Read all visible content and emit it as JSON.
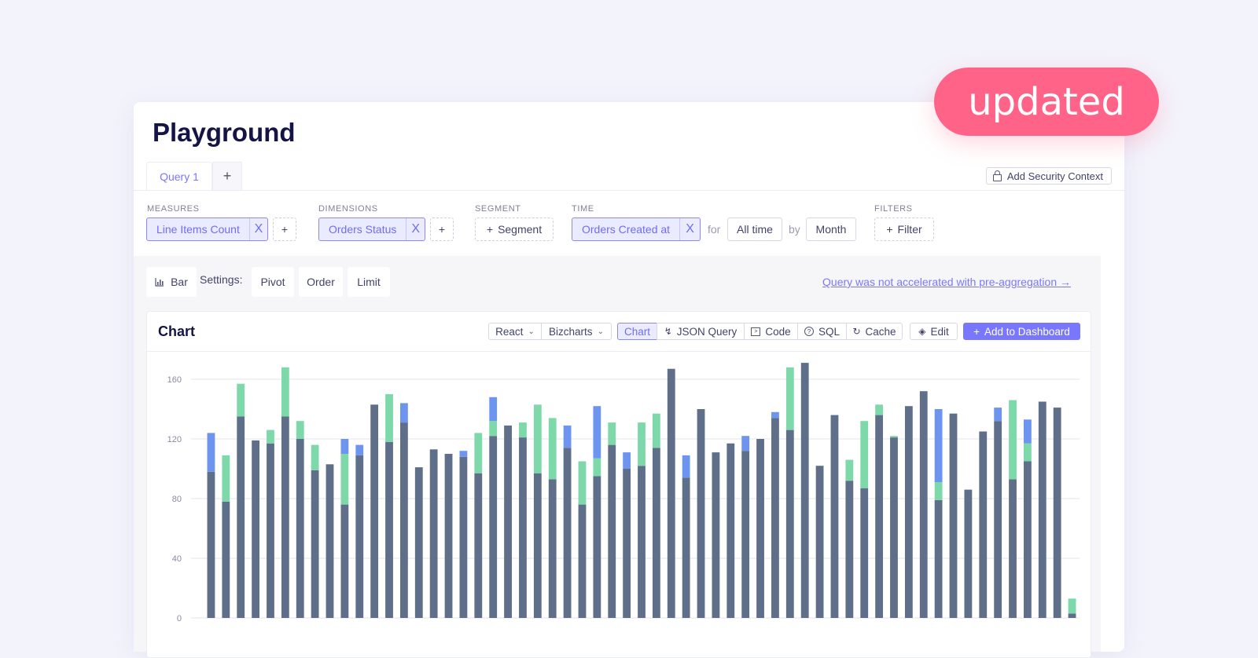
{
  "badge": "updated",
  "title": "Playground",
  "tabs": {
    "query_label": "Query 1",
    "add": "+"
  },
  "security_button": "Add Security Context",
  "builder": {
    "measures": {
      "label": "MEASURES",
      "item": "Line Items Count"
    },
    "dimensions": {
      "label": "DIMENSIONS",
      "item": "Orders Status"
    },
    "segment": {
      "label": "SEGMENT",
      "button": "Segment"
    },
    "time": {
      "label": "TIME",
      "item": "Orders Created at",
      "for_word": "for",
      "range": "All time",
      "by_word": "by",
      "granularity": "Month"
    },
    "filters": {
      "label": "FILTERS",
      "button": "Filter"
    },
    "add": "+",
    "remove": "X"
  },
  "controls": {
    "chart_type": "Bar",
    "settings_label": "Settings:",
    "pivot": "Pivot",
    "order": "Order",
    "limit": "Limit",
    "preagg_link": "Query was not accelerated with pre-aggregation →"
  },
  "chart_card": {
    "title": "Chart",
    "framework": "React",
    "library": "Bizcharts",
    "tabs": {
      "chart": "Chart",
      "json": "JSON Query",
      "code": "Code",
      "sql": "SQL",
      "cache": "Cache"
    },
    "edit": "Edit",
    "add_dashboard": "Add to Dashboard"
  },
  "colors": {
    "accent": "#7a77ff",
    "badge": "#ff6488",
    "series_dark": "#5f6f8a",
    "series_green": "#7dd9a9",
    "series_blue": "#6d94ee"
  },
  "chart_data": {
    "type": "bar",
    "stacked": true,
    "y_ticks": [
      0,
      40,
      80,
      120,
      160
    ],
    "ylim": [
      0,
      175
    ],
    "grid": true,
    "series_colors": [
      "#5f6f8a",
      "#7dd9a9",
      "#6d94ee"
    ],
    "stacks": [
      [
        98,
        0,
        26
      ],
      [
        78,
        31,
        0
      ],
      [
        135,
        22,
        0
      ],
      [
        119,
        0,
        0
      ],
      [
        117,
        9,
        0
      ],
      [
        135,
        33,
        0
      ],
      [
        120,
        12,
        0
      ],
      [
        99,
        17,
        0
      ],
      [
        103,
        0,
        0
      ],
      [
        76,
        34,
        10
      ],
      [
        109,
        0,
        7
      ],
      [
        143,
        0,
        0
      ],
      [
        118,
        32,
        0
      ],
      [
        131,
        0,
        13
      ],
      [
        101,
        0,
        0
      ],
      [
        113,
        0,
        0
      ],
      [
        110,
        0,
        0
      ],
      [
        108,
        0,
        4
      ],
      [
        97,
        27,
        0
      ],
      [
        122,
        10,
        16
      ],
      [
        129,
        0,
        0
      ],
      [
        121,
        10,
        0
      ],
      [
        97,
        46,
        0
      ],
      [
        93,
        41,
        0
      ],
      [
        114,
        0,
        15
      ],
      [
        76,
        29,
        0
      ],
      [
        95,
        12,
        35
      ],
      [
        116,
        15,
        0
      ],
      [
        100,
        0,
        11
      ],
      [
        102,
        29,
        0
      ],
      [
        114,
        23,
        0
      ],
      [
        167,
        0,
        0
      ],
      [
        94,
        0,
        15
      ],
      [
        140,
        0,
        0
      ],
      [
        111,
        0,
        0
      ],
      [
        117,
        0,
        0
      ],
      [
        112,
        0,
        10
      ],
      [
        120,
        0,
        0
      ],
      [
        134,
        0,
        4
      ],
      [
        126,
        42,
        0
      ],
      [
        171,
        0,
        0
      ],
      [
        102,
        0,
        0
      ],
      [
        136,
        0,
        0
      ],
      [
        92,
        14,
        0
      ],
      [
        87,
        45,
        0
      ],
      [
        136,
        7,
        0
      ],
      [
        121,
        1,
        0
      ],
      [
        142,
        0,
        0
      ],
      [
        152,
        0,
        0
      ],
      [
        79,
        12,
        49
      ],
      [
        137,
        0,
        0
      ],
      [
        86,
        0,
        0
      ],
      [
        125,
        0,
        0
      ],
      [
        132,
        0,
        9
      ],
      [
        93,
        53,
        0
      ],
      [
        105,
        12,
        16
      ],
      [
        145,
        0,
        0
      ],
      [
        141,
        0,
        0
      ],
      [
        3,
        10,
        0
      ]
    ]
  }
}
